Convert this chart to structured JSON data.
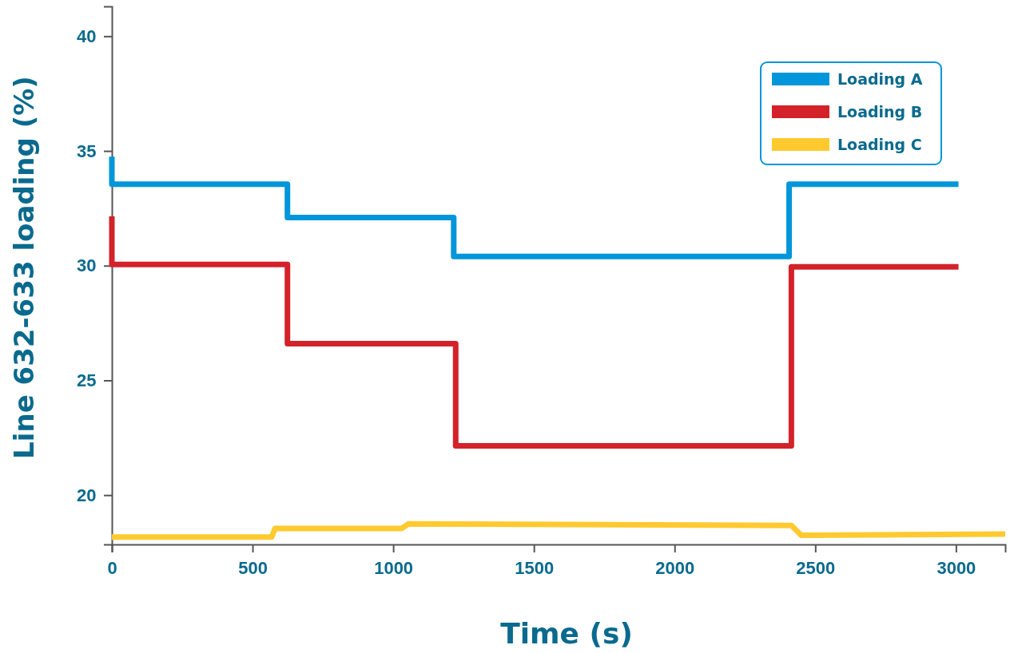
{
  "chart_data": {
    "type": "line",
    "xlabel": "Time (s)",
    "ylabel": "Line 632-633 loading (%)",
    "xlim": [
      0,
      3175
    ],
    "xticks": [
      0,
      500,
      1000,
      1500,
      2000,
      2500,
      3000
    ],
    "ylim": [
      17.85,
      41.3
    ],
    "yticks": [
      20,
      25,
      30,
      35,
      40
    ],
    "grid": false,
    "legend": "top right",
    "marker": "none",
    "line_style": "solid",
    "series": [
      {
        "name": "Loading A",
        "color": "#0096d9",
        "x": [
          0,
          0,
          624,
          624,
          1215,
          1215,
          2407,
          2407,
          3009
        ],
        "values": [
          34.75,
          33.55,
          33.55,
          32.1,
          32.1,
          30.4,
          30.4,
          33.55,
          33.55
        ]
      },
      {
        "name": "Loading B",
        "color": "#d3222a",
        "x": [
          0,
          0,
          624,
          624,
          1222,
          1222,
          2415,
          2415,
          3009
        ],
        "values": [
          32.15,
          30.05,
          30.05,
          26.6,
          26.6,
          22.15,
          22.15,
          29.95,
          29.95
        ]
      },
      {
        "name": "Loading C",
        "color": "#ffca30",
        "x": [
          0,
          568,
          580,
          1030,
          1055,
          2415,
          2450,
          3175
        ],
        "values": [
          18.17,
          18.17,
          18.55,
          18.55,
          18.75,
          18.68,
          18.25,
          18.3
        ]
      }
    ]
  }
}
